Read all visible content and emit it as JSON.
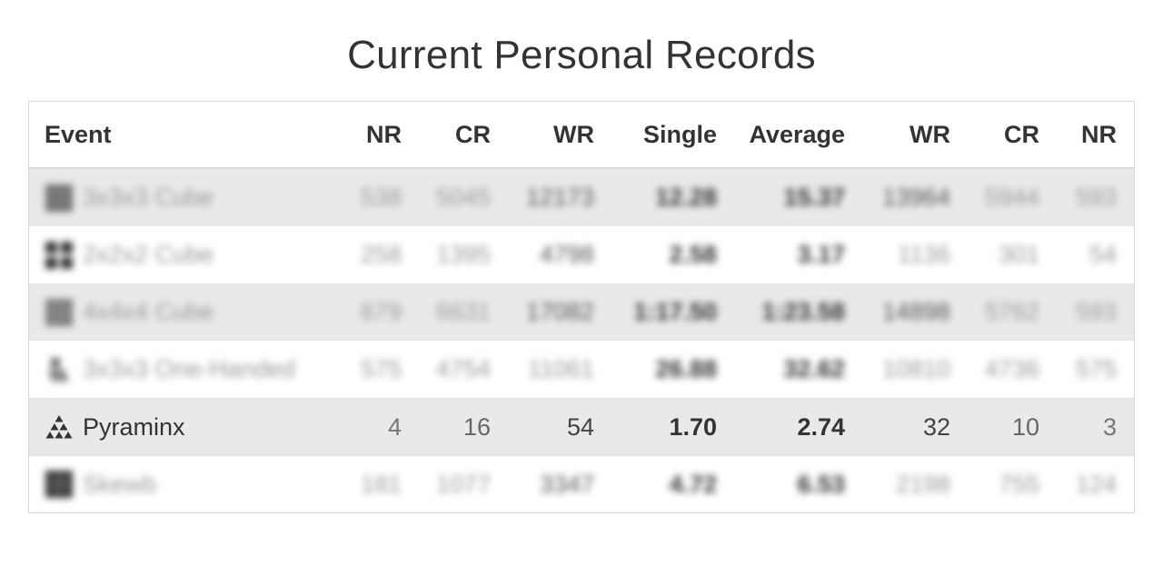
{
  "page": {
    "title": "Current Personal Records"
  },
  "table": {
    "headers": {
      "event": "Event",
      "nr1": "NR",
      "cr1": "CR",
      "wr1": "WR",
      "single": "Single",
      "average": "Average",
      "wr2": "WR",
      "cr2": "CR",
      "nr2": "NR"
    },
    "rows": [
      {
        "icon": "cube-3x3-icon",
        "event": "3x3x3 Cube",
        "nr1": "538",
        "cr1": "5045",
        "wr1": "12173",
        "single": "12.28",
        "average": "15.37",
        "wr2": "13964",
        "cr2": "5944",
        "nr2": "593"
      },
      {
        "icon": "cube-2x2-icon",
        "event": "2x2x2 Cube",
        "nr1": "258",
        "cr1": "1395",
        "wr1": "4798",
        "single": "2.58",
        "average": "3.17",
        "wr2": "1136",
        "cr2": "301",
        "nr2": "54"
      },
      {
        "icon": "cube-4x4-icon",
        "event": "4x4x4 Cube",
        "nr1": "679",
        "cr1": "6631",
        "wr1": "17082",
        "single": "1:17.50",
        "average": "1:23.58",
        "wr2": "14898",
        "cr2": "5762",
        "nr2": "593"
      },
      {
        "icon": "one-handed-icon",
        "event": "3x3x3 One-Handed",
        "nr1": "575",
        "cr1": "4754",
        "wr1": "11061",
        "single": "26.88",
        "average": "32.62",
        "wr2": "10810",
        "cr2": "4736",
        "nr2": "575"
      },
      {
        "icon": "pyraminx-icon",
        "event": "Pyraminx",
        "nr1": "4",
        "cr1": "16",
        "wr1": "54",
        "single": "1.70",
        "average": "2.74",
        "wr2": "32",
        "cr2": "10",
        "nr2": "3"
      },
      {
        "icon": "skewb-icon",
        "event": "Skewb",
        "nr1": "181",
        "cr1": "1077",
        "wr1": "3347",
        "single": "4.72",
        "average": "6.53",
        "wr2": "2198",
        "cr2": "755",
        "nr2": "124"
      }
    ]
  }
}
